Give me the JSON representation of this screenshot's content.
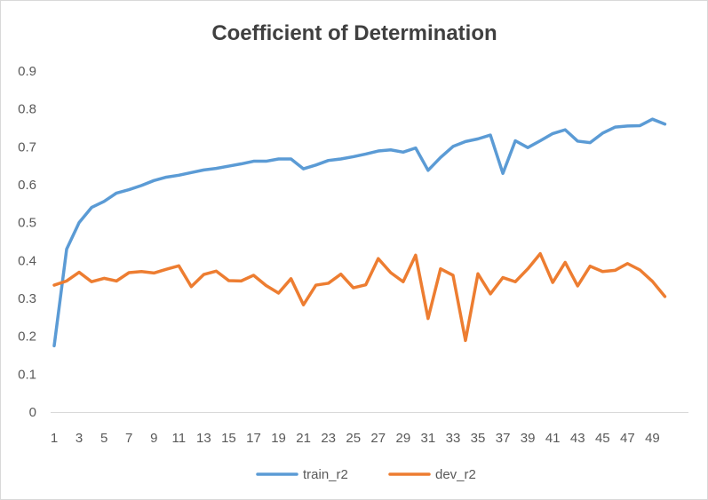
{
  "chart_data": {
    "type": "line",
    "title": "Coefficient of Determination",
    "xlabel": "",
    "ylabel": "",
    "ylim": [
      0,
      0.9
    ],
    "y_ticks": [
      "0",
      "0.1",
      "0.2",
      "0.3",
      "0.4",
      "0.5",
      "0.6",
      "0.7",
      "0.8",
      "0.9"
    ],
    "x": [
      1,
      2,
      3,
      4,
      5,
      6,
      7,
      8,
      9,
      10,
      11,
      12,
      13,
      14,
      15,
      16,
      17,
      18,
      19,
      20,
      21,
      22,
      23,
      24,
      25,
      26,
      27,
      28,
      29,
      30,
      31,
      32,
      33,
      34,
      35,
      36,
      37,
      38,
      39,
      40,
      41,
      42,
      43,
      44,
      45,
      46,
      47,
      48,
      49,
      50
    ],
    "x_tick_labels": [
      "1",
      "3",
      "5",
      "7",
      "9",
      "11",
      "13",
      "15",
      "17",
      "19",
      "21",
      "23",
      "25",
      "27",
      "29",
      "31",
      "33",
      "35",
      "37",
      "39",
      "41",
      "43",
      "45",
      "47",
      "49"
    ],
    "grid": false,
    "legend_position": "bottom",
    "series": [
      {
        "name": "train_r2",
        "color": "#5b9bd5",
        "values": [
          0.175,
          0.43,
          0.5,
          0.54,
          0.556,
          0.578,
          0.587,
          0.598,
          0.611,
          0.62,
          0.625,
          0.632,
          0.639,
          0.643,
          0.649,
          0.655,
          0.662,
          0.662,
          0.668,
          0.668,
          0.642,
          0.652,
          0.664,
          0.668,
          0.674,
          0.681,
          0.689,
          0.692,
          0.686,
          0.697,
          0.638,
          0.672,
          0.701,
          0.714,
          0.721,
          0.731,
          0.63,
          0.716,
          0.698,
          0.716,
          0.735,
          0.745,
          0.715,
          0.711,
          0.736,
          0.752,
          0.755,
          0.756,
          0.773,
          0.76
        ]
      },
      {
        "name": "dev_r2",
        "color": "#ed7d31",
        "values": [
          0.335,
          0.346,
          0.369,
          0.344,
          0.353,
          0.346,
          0.368,
          0.371,
          0.367,
          0.377,
          0.386,
          0.331,
          0.363,
          0.372,
          0.347,
          0.346,
          0.361,
          0.334,
          0.314,
          0.352,
          0.283,
          0.335,
          0.34,
          0.364,
          0.328,
          0.336,
          0.405,
          0.368,
          0.344,
          0.414,
          0.247,
          0.378,
          0.361,
          0.189,
          0.365,
          0.312,
          0.355,
          0.344,
          0.378,
          0.418,
          0.342,
          0.395,
          0.333,
          0.385,
          0.371,
          0.374,
          0.392,
          0.375,
          0.345,
          0.305
        ]
      }
    ]
  }
}
